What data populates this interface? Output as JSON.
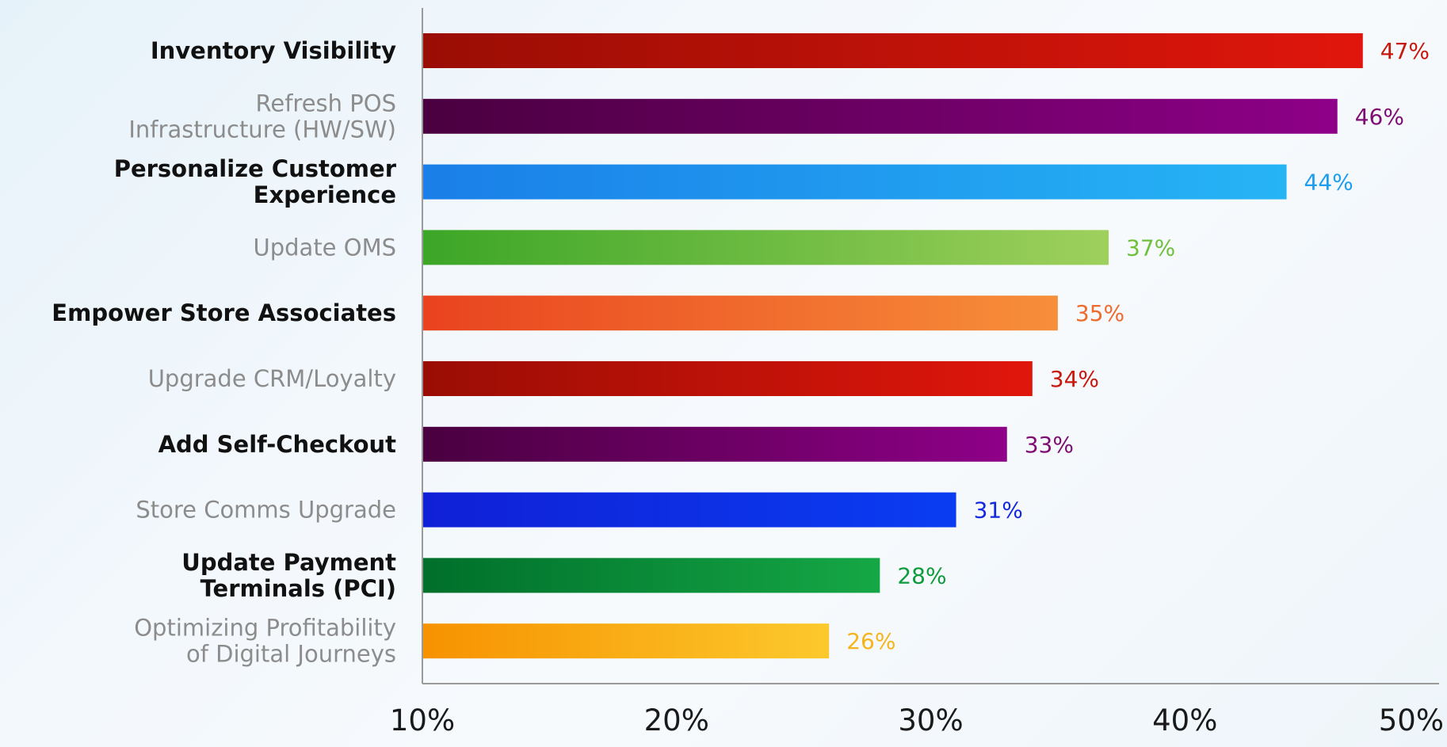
{
  "chart_data": {
    "type": "bar",
    "orientation": "horizontal",
    "categories": [
      [
        "Inventory Visibility"
      ],
      [
        "Refresh POS",
        "Infrastructure (HW/SW)"
      ],
      [
        "Personalize Customer",
        "Experience"
      ],
      [
        "Update OMS"
      ],
      [
        "Empower Store Associates"
      ],
      [
        "Upgrade CRM/Loyalty"
      ],
      [
        "Add Self-Checkout"
      ],
      [
        "Store Comms Upgrade"
      ],
      [
        "Update Payment",
        "Terminals (PCI)"
      ],
      [
        "Optimizing Profitability",
        "of Digital Journeys"
      ]
    ],
    "values": [
      47,
      46,
      44,
      37,
      35,
      34,
      33,
      31,
      28,
      26
    ],
    "value_labels": [
      "47%",
      "46%",
      "44%",
      "37%",
      "35%",
      "34%",
      "33%",
      "31%",
      "28%",
      "26%"
    ],
    "label_emphasis": [
      "bold",
      "muted",
      "bold",
      "muted",
      "bold",
      "muted",
      "bold",
      "muted",
      "bold",
      "muted"
    ],
    "bar_colors": [
      [
        "#9a0d04",
        "#e0160c"
      ],
      [
        "#4a0040",
        "#8e0088"
      ],
      [
        "#1a7fe8",
        "#26b4f5"
      ],
      [
        "#3ca627",
        "#9ed05c"
      ],
      [
        "#e9431f",
        "#f78f3a"
      ],
      [
        "#9a0d04",
        "#e0160c"
      ],
      [
        "#4a0040",
        "#8e0088"
      ],
      [
        "#1020d6",
        "#0a3df2"
      ],
      [
        "#006f2a",
        "#15a746"
      ],
      [
        "#f79200",
        "#fcc92c"
      ]
    ],
    "value_label_colors": [
      "#c8170c",
      "#7e0d74",
      "#1b9df0",
      "#6fc13b",
      "#ee6b2c",
      "#c8170c",
      "#7e0d74",
      "#1428e0",
      "#0f9a3c",
      "#f5b419"
    ],
    "x_ticks": [
      "10%",
      "20%",
      "30%",
      "40%",
      "50%"
    ],
    "xlim": [
      10,
      50
    ],
    "title": "",
    "xlabel": "",
    "ylabel": "",
    "grid": false,
    "colors": {
      "bold_label": "#111111",
      "muted_label": "#8c8c8c",
      "axis": "#9a9a9a",
      "tick_label": "#1a1a1a"
    }
  }
}
